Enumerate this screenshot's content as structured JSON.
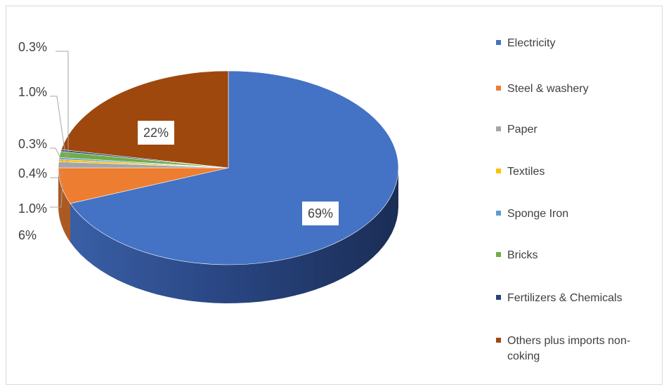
{
  "chart_data": {
    "type": "pie",
    "title": "",
    "style": "3d",
    "slices": [
      {
        "label": "Electricity",
        "value": 69,
        "display": "69%",
        "color": "#4472c4"
      },
      {
        "label": "Steel & washery",
        "value": 6,
        "display": "6%",
        "color": "#ed7d31"
      },
      {
        "label": "Paper",
        "value": 1.0,
        "display": "1.0%",
        "color": "#a5a5a5"
      },
      {
        "label": "Textiles",
        "value": 0.4,
        "display": "0.4%",
        "color": "#ffc000"
      },
      {
        "label": "Sponge Iron",
        "value": 0.3,
        "display": "0.3%",
        "color": "#5b9bd5"
      },
      {
        "label": "Bricks",
        "value": 1.0,
        "display": "1.0%",
        "color": "#70ad47"
      },
      {
        "label": "Fertilizers & Chemicals",
        "value": 0.3,
        "display": "0.3%",
        "color": "#264478"
      },
      {
        "label": "Others plus imports non-coking",
        "value": 22,
        "display": "22%",
        "color": "#9e480e"
      }
    ],
    "legend_position": "right"
  }
}
